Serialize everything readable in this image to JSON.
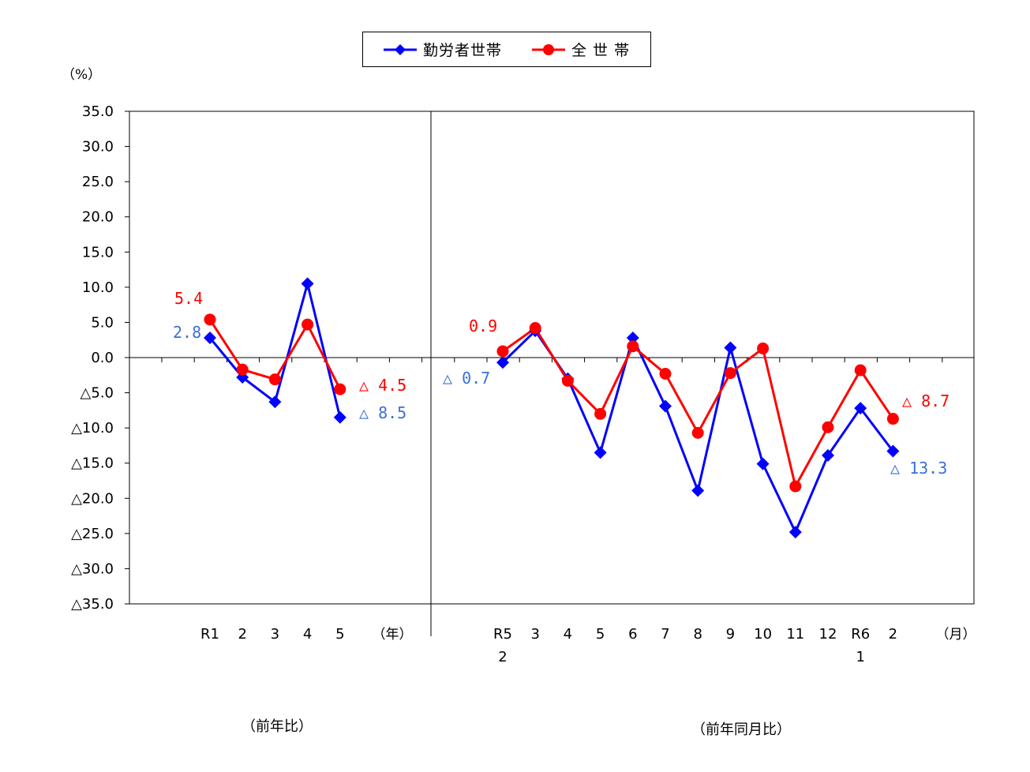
{
  "unit_label": "（%）",
  "legend": [
    {
      "label": "勤労者世帯",
      "color": "#0000ff",
      "marker": "diamond"
    },
    {
      "label": "全 世 帯",
      "color": "#ff0000",
      "marker": "circle"
    }
  ],
  "section_labels": {
    "left": "（前年比）",
    "right": "（前年同月比）"
  },
  "chart_data": {
    "type": "line",
    "ylim": [
      -35,
      35
    ],
    "y_ticks": [
      {
        "value": 35,
        "label": "35.0"
      },
      {
        "value": 30,
        "label": "30.0"
      },
      {
        "value": 25,
        "label": "25.0"
      },
      {
        "value": 20,
        "label": "20.0"
      },
      {
        "value": 15,
        "label": "15.0"
      },
      {
        "value": 10,
        "label": "10.0"
      },
      {
        "value": 5,
        "label": "5.0"
      },
      {
        "value": 0,
        "label": "0.0"
      },
      {
        "value": -5,
        "label": "△5.0"
      },
      {
        "value": -10,
        "label": "△10.0"
      },
      {
        "value": -15,
        "label": "△15.0"
      },
      {
        "value": -20,
        "label": "△20.0"
      },
      {
        "value": -25,
        "label": "△25.0"
      },
      {
        "value": -30,
        "label": "△30.0"
      },
      {
        "value": -35,
        "label": "△35.0"
      }
    ],
    "panels": [
      {
        "name": "annual",
        "unit_label": "（年）",
        "categories": [
          {
            "line1": "R1",
            "line2": ""
          },
          {
            "line1": "2",
            "line2": ""
          },
          {
            "line1": "3",
            "line2": ""
          },
          {
            "line1": "4",
            "line2": ""
          },
          {
            "line1": "5",
            "line2": ""
          }
        ],
        "series": [
          {
            "name": "勤労者世帯",
            "values": [
              2.8,
              -2.8,
              -6.3,
              10.5,
              -8.5
            ]
          },
          {
            "name": "全 世 帯",
            "values": [
              5.4,
              -1.7,
              -3.1,
              4.7,
              -4.5
            ]
          }
        ],
        "annotations": [
          {
            "text": "5.4",
            "series": "全 世 帯"
          },
          {
            "text": "2.8",
            "series": "勤労者世帯"
          },
          {
            "text": "△ 4.5",
            "series": "全 世 帯"
          },
          {
            "text": "△ 8.5",
            "series": "勤労者世帯"
          }
        ]
      },
      {
        "name": "monthly",
        "unit_label": "（月）",
        "categories": [
          {
            "line1": "R5",
            "line2": "2"
          },
          {
            "line1": "3",
            "line2": ""
          },
          {
            "line1": "4",
            "line2": ""
          },
          {
            "line1": "5",
            "line2": ""
          },
          {
            "line1": "6",
            "line2": ""
          },
          {
            "line1": "7",
            "line2": ""
          },
          {
            "line1": "8",
            "line2": ""
          },
          {
            "line1": "9",
            "line2": ""
          },
          {
            "line1": "10",
            "line2": ""
          },
          {
            "line1": "11",
            "line2": ""
          },
          {
            "line1": "12",
            "line2": ""
          },
          {
            "line1": "R6",
            "line2": "1"
          },
          {
            "line1": "2",
            "line2": ""
          }
        ],
        "series": [
          {
            "name": "勤労者世帯",
            "values": [
              -0.7,
              3.8,
              -3.0,
              -13.5,
              2.8,
              -6.9,
              -18.9,
              1.4,
              -15.1,
              -24.8,
              -13.9,
              -7.2,
              -13.3
            ]
          },
          {
            "name": "全 世 帯",
            "values": [
              0.9,
              4.2,
              -3.3,
              -8.0,
              1.6,
              -2.3,
              -10.7,
              -2.2,
              1.3,
              -18.3,
              -9.9,
              -1.8,
              -8.7
            ]
          }
        ],
        "annotations": [
          {
            "text": "0.9",
            "series": "全 世 帯"
          },
          {
            "text": "△ 0.7",
            "series": "勤労者世帯"
          },
          {
            "text": "△ 8.7",
            "series": "全 世 帯"
          },
          {
            "text": "△ 13.3",
            "series": "勤労者世帯"
          }
        ]
      }
    ]
  }
}
